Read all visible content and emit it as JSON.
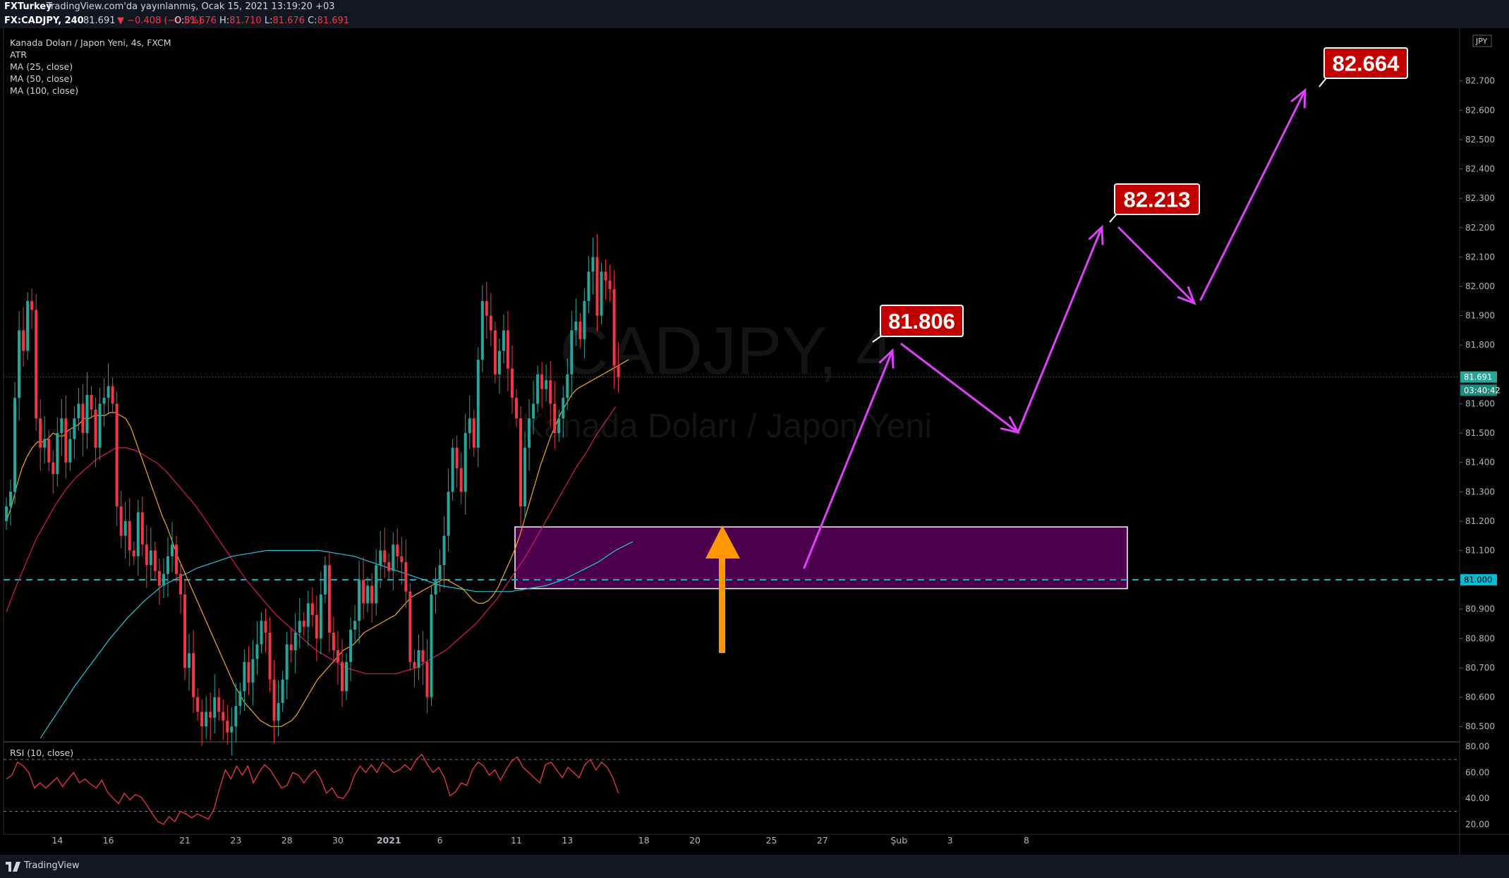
{
  "header": {
    "author": "FXTurkey",
    "published": "TradingView.com'da yayınlanmış, Ocak 15, 2021 13:19:20 +03",
    "symbol": "FX:CADJPY, 240",
    "last": "81.691",
    "change": "▼ −0.408 (−0.5%)",
    "o_label": "O:",
    "o_value": "81.676",
    "h_label": "H:",
    "h_value": "81.710",
    "l_label": "L:",
    "l_value": "81.676",
    "c_label": "C:",
    "c_value": "81.691"
  },
  "legend": {
    "title": "Kanada Doları / Japon Yeni, 4s, FXCM",
    "atr": "ATR",
    "ma25": "MA (25, close)",
    "ma50": "MA (50, close)",
    "ma100": "MA (100, close)"
  },
  "watermark": {
    "symbol": "CADJPY, 4",
    "name": "Kanada Doları / Japon Yeni"
  },
  "currency_badge": "JPY",
  "footer": {
    "brand": "TradingView"
  },
  "icons": [
    "tradingview-logo-icon"
  ],
  "colors": {
    "up": "#26a69a",
    "down": "#f23645",
    "zone": "#800080",
    "arrow_up": "#ff9800",
    "projection": "#e040fb",
    "label_bg": "#c10000",
    "ma25": "#f5a623",
    "ma50": "#d81b60",
    "ma100": "#26c6da",
    "rsi": "#f23645",
    "level_line": "#00bcd4"
  },
  "chart_data": {
    "type": "candlestick",
    "symbol": "FX:CADJPY",
    "timeframe": "4h",
    "ylim": [
      80.45,
      82.87
    ],
    "price_ticks": [
      "80.500",
      "80.600",
      "80.700",
      "80.800",
      "80.900",
      "81.100",
      "81.200",
      "81.300",
      "81.400",
      "81.500",
      "81.600",
      "81.800",
      "81.900",
      "82.000",
      "82.100",
      "82.200",
      "82.300",
      "82.400",
      "82.500",
      "82.600",
      "82.700"
    ],
    "x_ticks": [
      {
        "bar": 12,
        "label": "14"
      },
      {
        "bar": 24,
        "label": "16"
      },
      {
        "bar": 42,
        "label": "21"
      },
      {
        "bar": 54,
        "label": "23"
      },
      {
        "bar": 66,
        "label": "28"
      },
      {
        "bar": 78,
        "label": "30"
      },
      {
        "bar": 90,
        "label": "2021"
      },
      {
        "bar": 102,
        "label": "6"
      },
      {
        "bar": 120,
        "label": "11"
      },
      {
        "bar": 132,
        "label": "13"
      },
      {
        "bar": 150,
        "label": "18"
      },
      {
        "bar": 162,
        "label": "20"
      },
      {
        "bar": 180,
        "label": "25"
      },
      {
        "bar": 192,
        "label": "27"
      },
      {
        "bar": 210,
        "label": "Şub"
      },
      {
        "bar": 222,
        "label": "3"
      },
      {
        "bar": 240,
        "label": "8"
      }
    ],
    "closes": [
      81.25,
      81.3,
      81.62,
      81.85,
      81.78,
      81.95,
      81.92,
      81.55,
      81.45,
      81.48,
      81.4,
      81.36,
      81.5,
      81.55,
      81.4,
      81.48,
      81.55,
      81.6,
      81.5,
      81.63,
      81.58,
      81.45,
      81.6,
      81.62,
      81.66,
      81.6,
      81.25,
      81.15,
      81.2,
      81.1,
      81.08,
      81.23,
      81.12,
      81.05,
      81.1,
      81.03,
      80.98,
      81.02,
      81.08,
      81.12,
      81.02,
      80.95,
      80.7,
      80.75,
      80.6,
      80.55,
      80.5,
      80.55,
      80.53,
      80.6,
      80.55,
      80.52,
      80.48,
      80.5,
      80.57,
      80.62,
      80.72,
      80.65,
      80.73,
      80.78,
      80.86,
      80.82,
      80.66,
      80.52,
      80.58,
      80.66,
      80.78,
      80.76,
      80.82,
      80.86,
      80.84,
      80.92,
      80.88,
      80.8,
      80.95,
      81.05,
      80.82,
      80.76,
      80.72,
      80.62,
      80.72,
      80.83,
      80.86,
      81.0,
      80.92,
      80.98,
      80.92,
      81.05,
      81.1,
      81.06,
      81.03,
      81.12,
      81.08,
      81.06,
      80.96,
      80.72,
      80.7,
      80.76,
      80.72,
      80.6,
      80.95,
      81.0,
      81.05,
      81.15,
      81.3,
      81.45,
      81.38,
      81.3,
      81.5,
      81.55,
      81.45,
      81.75,
      81.95,
      81.9,
      81.85,
      81.7,
      81.78,
      81.85,
      81.72,
      81.62,
      81.55,
      81.25,
      81.45,
      81.55,
      81.6,
      81.7,
      81.65,
      81.68,
      81.6,
      81.5,
      81.55,
      81.62,
      81.7,
      81.85,
      81.88,
      81.82,
      81.95,
      82.05,
      82.1,
      81.9,
      82.05,
      82.02,
      81.99,
      81.73,
      81.69
    ],
    "ma25": [
      81.2,
      81.25,
      81.32,
      81.38,
      81.42,
      81.45,
      81.47,
      81.47,
      81.48,
      81.5,
      81.49,
      81.49,
      81.51,
      81.52,
      81.53,
      81.55,
      81.55,
      81.56,
      81.56,
      81.56,
      81.57,
      81.57,
      81.56,
      81.55,
      81.52,
      81.47,
      81.42,
      81.37,
      81.32,
      81.27,
      81.22,
      81.18,
      81.13,
      81.08,
      81.04,
      81.0,
      80.96,
      80.92,
      80.88,
      80.84,
      80.8,
      80.76,
      80.72,
      80.68,
      80.64,
      80.61,
      80.58,
      80.56,
      80.54,
      80.52,
      80.51,
      80.5,
      80.5,
      80.5,
      80.51,
      80.52,
      80.54,
      80.57,
      80.6,
      80.63,
      80.66,
      80.68,
      80.7,
      80.72,
      80.74,
      80.76,
      80.77,
      80.78,
      80.8,
      80.82,
      80.83,
      80.84,
      80.85,
      80.86,
      80.87,
      80.88,
      80.9,
      80.92,
      80.94,
      80.95,
      80.96,
      80.97,
      80.98,
      80.99,
      81.0,
      81.0,
      80.99,
      80.98,
      80.97,
      80.95,
      80.93,
      80.92,
      80.92,
      80.93,
      80.95,
      80.98,
      81.02,
      81.06,
      81.1,
      81.15,
      81.21,
      81.27,
      81.33,
      81.39,
      81.44,
      81.49,
      81.53,
      81.57,
      81.6,
      81.63,
      81.65,
      81.66,
      81.67,
      81.68,
      81.69,
      81.7,
      81.71,
      81.72,
      81.73,
      81.74,
      81.75
    ],
    "ma25_offset": 0,
    "ma50": [
      80.89,
      80.98,
      81.06,
      81.14,
      81.2,
      81.26,
      81.31,
      81.35,
      81.38,
      81.41,
      81.43,
      81.45,
      81.45,
      81.44,
      81.42,
      81.4,
      81.37,
      81.33,
      81.29,
      81.25,
      81.2,
      81.15,
      81.1,
      81.05,
      81.0,
      80.96,
      80.92,
      80.88,
      80.85,
      80.82,
      80.79,
      80.76,
      80.74,
      80.72,
      80.7,
      80.69,
      80.68,
      80.68,
      80.68,
      80.68,
      80.69,
      80.7,
      80.72,
      80.74,
      80.76,
      80.79,
      80.82,
      80.85,
      80.89,
      80.93,
      80.98,
      81.03,
      81.08,
      81.14,
      81.2,
      81.26,
      81.32,
      81.38,
      81.43,
      81.49,
      81.54,
      81.59
    ],
    "ma100": [
      80.46,
      80.55,
      80.64,
      80.72,
      80.8,
      80.87,
      80.93,
      80.98,
      81.01,
      81.04,
      81.06,
      81.08,
      81.09,
      81.1,
      81.1,
      81.1,
      81.1,
      81.09,
      81.08,
      81.06,
      81.04,
      81.02,
      81.0,
      80.98,
      80.97,
      80.96,
      80.96,
      80.96,
      80.97,
      80.98,
      81.0,
      81.03,
      81.06,
      81.1,
      81.13
    ],
    "rsi": {
      "ylim": [
        15,
        82
      ],
      "ticks": [
        "80.00",
        "60.00",
        "40.00",
        "20.00"
      ],
      "levels": [
        70,
        30
      ],
      "values": [
        55,
        58,
        68,
        65,
        60,
        48,
        52,
        48,
        52,
        56,
        49,
        55,
        60,
        52,
        55,
        51,
        48,
        54,
        45,
        40,
        36,
        44,
        39,
        43,
        41,
        35,
        28,
        22,
        20,
        26,
        22,
        30,
        28,
        25,
        28,
        26,
        24,
        32,
        48,
        62,
        55,
        65,
        58,
        65,
        52,
        60,
        66,
        62,
        55,
        48,
        50,
        60,
        58,
        52,
        58,
        62,
        55,
        44,
        48,
        41,
        40,
        46,
        58,
        65,
        60,
        66,
        60,
        68,
        64,
        60,
        62,
        66,
        62,
        70,
        74,
        66,
        60,
        64,
        56,
        42,
        45,
        52,
        50,
        62,
        68,
        65,
        58,
        62,
        54,
        62,
        69,
        72,
        64,
        60,
        56,
        52,
        66,
        68,
        62,
        56,
        64,
        60,
        56,
        66,
        70,
        62,
        68,
        64,
        56,
        44
      ]
    },
    "support_zone": [
      80.97,
      81.18
    ],
    "horizontal_level": 81.0,
    "current_price_label": "81.691",
    "countdown_label": "03:40:42",
    "level_label": "81.000",
    "targets": [
      "81.806",
      "82.213",
      "82.664"
    ]
  }
}
